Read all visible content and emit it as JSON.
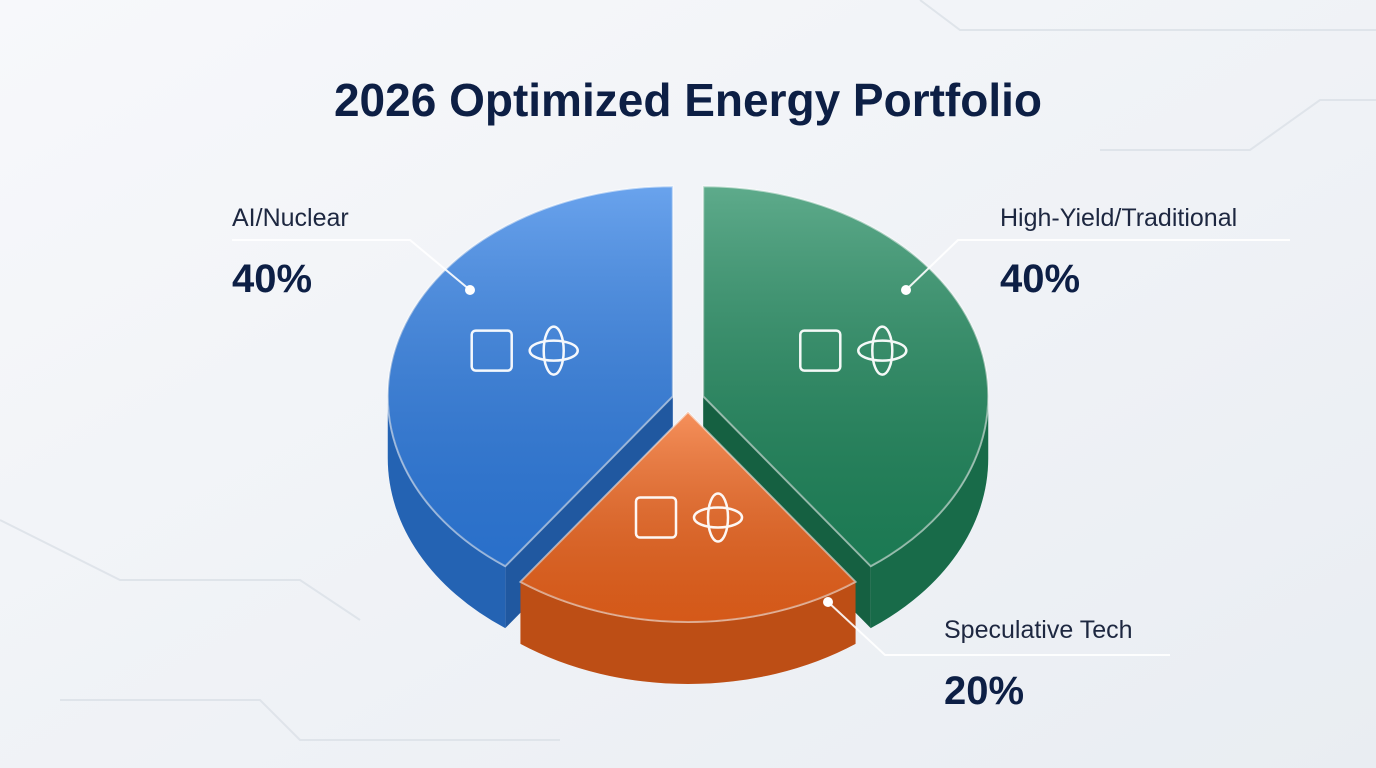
{
  "chart_data": {
    "type": "pie",
    "title": "2026 Optimized Energy Portfolio",
    "categories": [
      "AI/Nuclear",
      "High-Yield/Traditional",
      "Speculative Tech"
    ],
    "values": [
      40,
      40,
      20
    ],
    "value_labels": [
      "40%",
      "40%",
      "20%"
    ],
    "colors": [
      "#2f7fe6",
      "#1f8a5e",
      "#f2651c"
    ]
  }
}
